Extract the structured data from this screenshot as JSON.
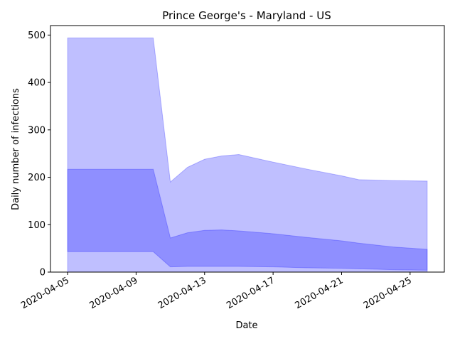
{
  "chart_data": {
    "type": "area",
    "title": "Prince George's - Maryland - US",
    "xlabel": "Date",
    "ylabel": "Daily number of infections",
    "x": [
      "2020-04-05",
      "2020-04-10",
      "2020-04-11",
      "2020-04-12",
      "2020-04-13",
      "2020-04-14",
      "2020-04-15",
      "2020-04-17",
      "2020-04-19",
      "2020-04-21",
      "2020-04-22",
      "2020-04-24",
      "2020-04-26"
    ],
    "xlim": [
      "2020-04-04",
      "2020-04-27"
    ],
    "x_ticks": [
      "2020-04-05",
      "2020-04-09",
      "2020-04-13",
      "2020-04-17",
      "2020-04-21",
      "2020-04-25"
    ],
    "ylim": [
      0,
      520
    ],
    "y_ticks": [
      0,
      100,
      200,
      300,
      400,
      500
    ],
    "grid": false,
    "series": [
      {
        "lower": [
          0,
          0,
          0,
          0,
          0,
          0,
          0,
          0,
          0,
          0,
          0,
          0,
          0
        ],
        "upper": [
          494,
          494,
          190,
          221,
          238,
          245,
          248,
          232,
          217,
          203,
          195,
          193,
          192
        ],
        "color": "#0000ff",
        "opacity": 0.25
      },
      {
        "lower": [
          43,
          43,
          11,
          12,
          12,
          12,
          12,
          11,
          9,
          8,
          7,
          5,
          4
        ],
        "upper": [
          217,
          217,
          72,
          83,
          88,
          89,
          87,
          81,
          73,
          66,
          61,
          53,
          48
        ],
        "color": "#0000ff",
        "opacity": 0.25
      }
    ]
  }
}
